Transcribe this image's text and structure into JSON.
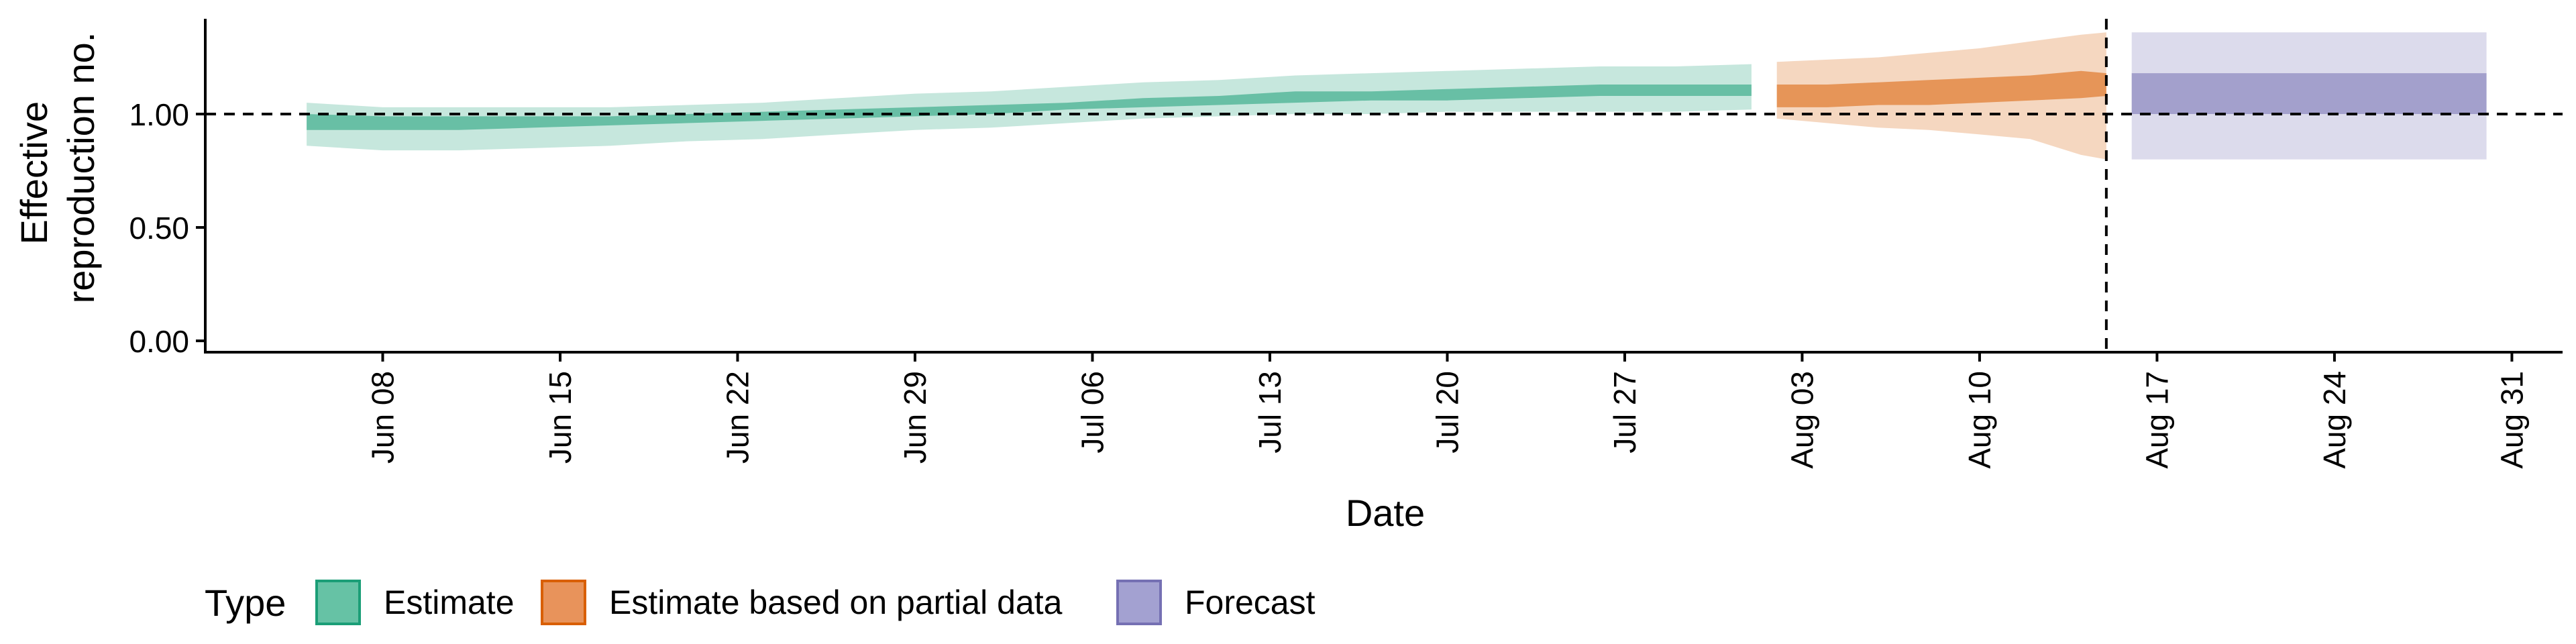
{
  "chart_data": {
    "type": "area",
    "title": "",
    "xlabel": "Date",
    "ylabel_lines": [
      "Effective",
      "reproduction no."
    ],
    "ylim": [
      -0.05,
      1.42
    ],
    "xlim": [
      "2020-06-01",
      "2020-09-02"
    ],
    "y_ticks": [
      0.0,
      0.5,
      1.0
    ],
    "y_tick_labels": [
      "0.00",
      "0.50",
      "1.00"
    ],
    "x_ticks": [
      "2020-06-08",
      "2020-06-15",
      "2020-06-22",
      "2020-06-29",
      "2020-07-06",
      "2020-07-13",
      "2020-07-20",
      "2020-07-27",
      "2020-08-03",
      "2020-08-10",
      "2020-08-17",
      "2020-08-24",
      "2020-08-31"
    ],
    "x_tick_labels": [
      "Jun 08",
      "Jun 15",
      "Jun 22",
      "Jun 29",
      "Jul 06",
      "Jul 13",
      "Jul 20",
      "Jul 27",
      "Aug 03",
      "Aug 10",
      "Aug 17",
      "Aug 24",
      "Aug 31"
    ],
    "reference_lines": {
      "horizontal_y": 1.0,
      "vertical_x": "2020-08-15",
      "style": "dashed"
    },
    "grid": false,
    "legend": {
      "title": "Type",
      "position": "bottom-left",
      "entries": [
        {
          "label": "Estimate",
          "fill": "#66c2a5",
          "stroke": "#1b9e77"
        },
        {
          "label": "Estimate based on partial data",
          "fill": "#e8935b",
          "stroke": "#d95f02"
        },
        {
          "label": "Forecast",
          "fill": "#a3a1d1",
          "stroke": "#7570b3"
        }
      ]
    },
    "series": [
      {
        "name": "Estimate",
        "color": "#1b9e77",
        "x": [
          "2020-06-05",
          "2020-06-08",
          "2020-06-11",
          "2020-06-14",
          "2020-06-17",
          "2020-06-20",
          "2020-06-23",
          "2020-06-26",
          "2020-06-29",
          "2020-07-02",
          "2020-07-05",
          "2020-07-08",
          "2020-07-11",
          "2020-07-14",
          "2020-07-17",
          "2020-07-20",
          "2020-07-23",
          "2020-07-26",
          "2020-07-29",
          "2020-08-01"
        ],
        "outer_lower": [
          0.86,
          0.84,
          0.84,
          0.85,
          0.86,
          0.88,
          0.89,
          0.91,
          0.93,
          0.94,
          0.96,
          0.98,
          0.99,
          1.0,
          1.0,
          1.01,
          1.01,
          1.01,
          1.01,
          1.02
        ],
        "outer_upper": [
          1.05,
          1.03,
          1.03,
          1.03,
          1.03,
          1.04,
          1.05,
          1.07,
          1.09,
          1.1,
          1.12,
          1.14,
          1.15,
          1.17,
          1.18,
          1.19,
          1.2,
          1.21,
          1.21,
          1.22
        ],
        "inner_lower": [
          0.93,
          0.93,
          0.93,
          0.94,
          0.95,
          0.96,
          0.97,
          0.98,
          0.99,
          1.0,
          1.02,
          1.03,
          1.04,
          1.05,
          1.06,
          1.06,
          1.07,
          1.08,
          1.08,
          1.08
        ],
        "inner_upper": [
          1.0,
          0.99,
          0.99,
          0.99,
          0.99,
          1.0,
          1.01,
          1.02,
          1.03,
          1.04,
          1.05,
          1.07,
          1.08,
          1.1,
          1.1,
          1.11,
          1.12,
          1.13,
          1.13,
          1.13
        ]
      },
      {
        "name": "Estimate based on partial data",
        "color": "#d95f02",
        "x": [
          "2020-08-02",
          "2020-08-04",
          "2020-08-06",
          "2020-08-08",
          "2020-08-10",
          "2020-08-12",
          "2020-08-14",
          "2020-08-15"
        ],
        "outer_lower": [
          0.98,
          0.96,
          0.94,
          0.93,
          0.91,
          0.89,
          0.82,
          0.8
        ],
        "outer_upper": [
          1.23,
          1.24,
          1.25,
          1.27,
          1.29,
          1.32,
          1.35,
          1.36
        ],
        "inner_lower": [
          1.03,
          1.03,
          1.04,
          1.04,
          1.05,
          1.06,
          1.07,
          1.08
        ],
        "inner_upper": [
          1.13,
          1.13,
          1.14,
          1.15,
          1.16,
          1.17,
          1.19,
          1.18
        ]
      },
      {
        "name": "Forecast",
        "color": "#7570b3",
        "x": [
          "2020-08-16",
          "2020-08-30"
        ],
        "outer_lower": [
          0.8,
          0.8
        ],
        "outer_upper": [
          1.36,
          1.36
        ],
        "inner_lower": [
          1.0,
          1.0
        ],
        "inner_upper": [
          1.18,
          1.18
        ]
      }
    ]
  }
}
